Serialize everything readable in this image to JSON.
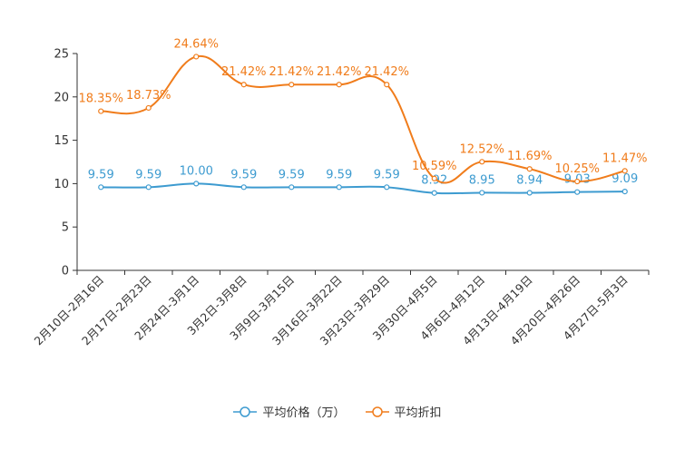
{
  "chart_data": {
    "type": "line",
    "categories": [
      "2月10日-2月16日",
      "2月17日-2月23日",
      "2月24日-3月1日",
      "3月2日-3月8日",
      "3月9日-3月15日",
      "3月16日-3月22日",
      "3月23日-3月29日",
      "3月30日-4月5日",
      "4月6日-4月12日",
      "4月13日-4月19日",
      "4月20日-4月26日",
      "4月27日-5月3日"
    ],
    "series": [
      {
        "name": "平均价格（万）",
        "color": "#3d9bd0",
        "values": [
          9.59,
          9.59,
          10.0,
          9.59,
          9.59,
          9.59,
          9.59,
          8.92,
          8.95,
          8.94,
          9.03,
          9.09
        ],
        "labels": [
          "9.59",
          "9.59",
          "10.00",
          "9.59",
          "9.59",
          "9.59",
          "9.59",
          "8.92",
          "8.95",
          "8.94",
          "9.03",
          "9.09"
        ]
      },
      {
        "name": "平均折扣",
        "color": "#f07c1b",
        "values": [
          18.35,
          18.73,
          24.64,
          21.42,
          21.42,
          21.42,
          21.42,
          10.59,
          12.52,
          11.69,
          10.25,
          11.47
        ],
        "labels": [
          "18.35%",
          "18.73%",
          "24.64%",
          "21.42%",
          "21.42%",
          "21.42%",
          "21.42%",
          "10.59%",
          "12.52%",
          "11.69%",
          "10.25%",
          "11.47%"
        ]
      }
    ],
    "yticks": [
      "0",
      "5",
      "10",
      "15",
      "20",
      "25"
    ],
    "ylim": [
      0,
      25
    ],
    "legend_position": "bottom-center",
    "grid": false
  }
}
